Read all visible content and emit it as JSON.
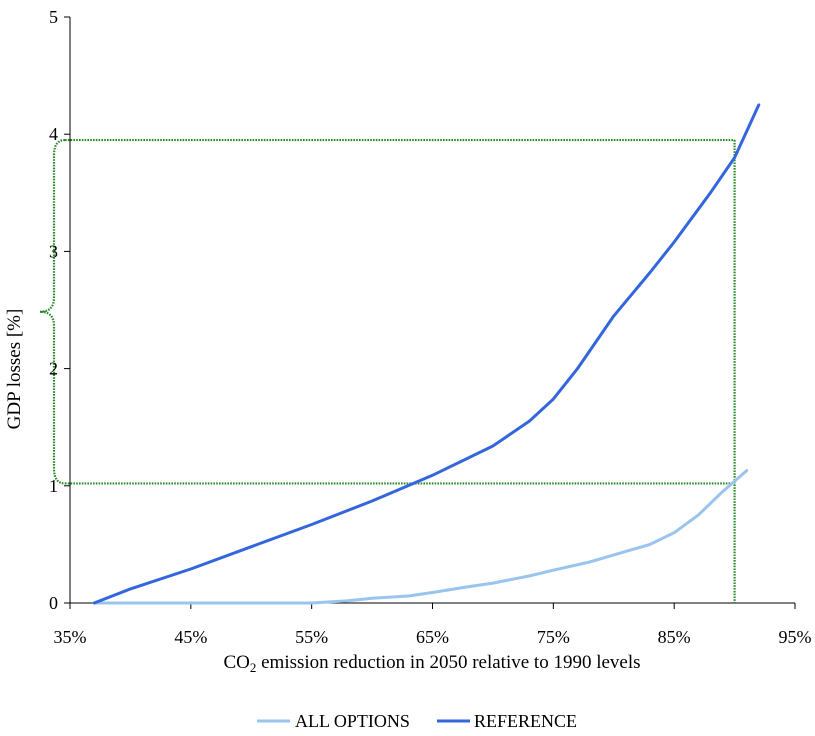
{
  "chart_data": {
    "type": "line",
    "title": "",
    "xlabel": "CO",
    "xlabel_sub": "2",
    "xlabel_rest": " emission reduction in 2050 relative to 1990 levels",
    "ylabel": "GDP losses [%]",
    "xlim": [
      0.35,
      0.95
    ],
    "ylim": [
      0,
      5
    ],
    "x_ticks": [
      0.35,
      0.45,
      0.55,
      0.65,
      0.75,
      0.85,
      0.95
    ],
    "x_tick_labels": [
      "35%",
      "45%",
      "55%",
      "65%",
      "75%",
      "85%",
      "95%"
    ],
    "y_ticks": [
      0,
      1,
      2,
      3,
      4,
      5
    ],
    "y_tick_labels": [
      "0",
      "1",
      "2",
      "3",
      "4",
      "5"
    ],
    "grid": false,
    "legend_position": "bottom",
    "series": [
      {
        "name": "ALL OPTIONS",
        "color": "#99c4ee",
        "x": [
          0.37,
          0.4,
          0.45,
          0.5,
          0.55,
          0.58,
          0.6,
          0.63,
          0.65,
          0.68,
          0.7,
          0.73,
          0.75,
          0.78,
          0.8,
          0.83,
          0.85,
          0.87,
          0.89,
          0.91
        ],
        "y": [
          0.0,
          0.0,
          0.0,
          0.0,
          0.0,
          0.02,
          0.04,
          0.06,
          0.09,
          0.14,
          0.17,
          0.23,
          0.28,
          0.35,
          0.41,
          0.5,
          0.6,
          0.75,
          0.95,
          1.13
        ]
      },
      {
        "name": "REFERENCE",
        "color": "#3366dd",
        "x": [
          0.37,
          0.4,
          0.45,
          0.5,
          0.55,
          0.6,
          0.65,
          0.7,
          0.73,
          0.75,
          0.77,
          0.8,
          0.83,
          0.85,
          0.88,
          0.9,
          0.92
        ],
        "y": [
          0.0,
          0.12,
          0.29,
          0.48,
          0.67,
          0.87,
          1.09,
          1.34,
          1.55,
          1.74,
          2.0,
          2.45,
          2.82,
          3.08,
          3.5,
          3.8,
          4.25
        ]
      }
    ],
    "annotation": {
      "color": "#2a8a2a",
      "x_marker": 0.9,
      "y_upper": 3.95,
      "y_lower": 1.02
    }
  }
}
